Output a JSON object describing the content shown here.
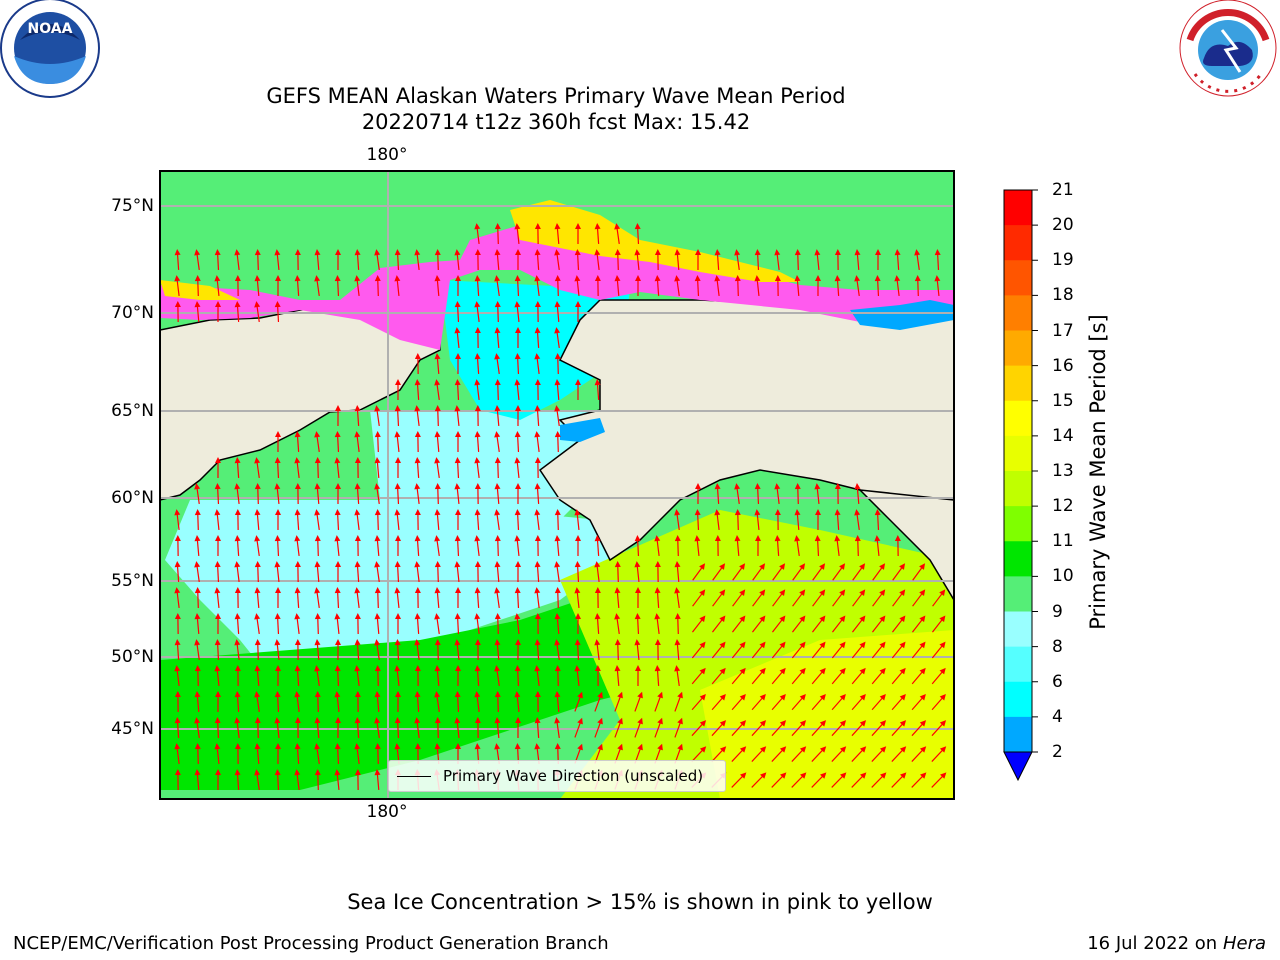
{
  "header": {
    "title_line1": "GEFS MEAN Alaskan Waters Primary Wave Mean Period",
    "title_line2": "20220714 t12z 360h fcst   Max: 15.42",
    "left_logo": "noaa-logo",
    "right_logo": "national-weather-service-logo",
    "right_logo_text": "NATIONAL WEATHER SERVICE"
  },
  "map": {
    "lon_label_top": "180°",
    "lon_label_bottom": "180°",
    "lat_labels": [
      "75°N",
      "70°N",
      "65°N",
      "60°N",
      "55°N",
      "50°N",
      "45°N"
    ],
    "legend_label": "Primary Wave Direction (unscaled)",
    "colors": {
      "land": "#eeecdc",
      "ice_pink": "#ff5aee",
      "ice_yellow": "#ffe600",
      "arrow": "#ff0000",
      "grid": "#b0b0b0"
    }
  },
  "colorbar": {
    "title": "Primary Wave Mean Period [s]",
    "ticks": [
      "21",
      "20",
      "19",
      "18",
      "17",
      "16",
      "15",
      "14",
      "13",
      "12",
      "11",
      "10",
      "9",
      "8",
      "6",
      "4",
      "2"
    ],
    "colors": [
      "#ff0000",
      "#ff2a00",
      "#ff5500",
      "#ff7f00",
      "#ffaa00",
      "#ffd400",
      "#ffff00",
      "#e8ff00",
      "#c0ff00",
      "#7fff00",
      "#00e600",
      "#55ee77",
      "#99ffff",
      "#55ffff",
      "#00ffff",
      "#00a8ff",
      "#0000ff"
    ]
  },
  "footer": {
    "note": "Sea Ice Concentration > 15% is shown in pink to yellow",
    "credit": "NCEP/EMC/Verification Post Processing Product Generation Branch",
    "date": "16 Jul 2022 on ",
    "machine": "Hera"
  }
}
